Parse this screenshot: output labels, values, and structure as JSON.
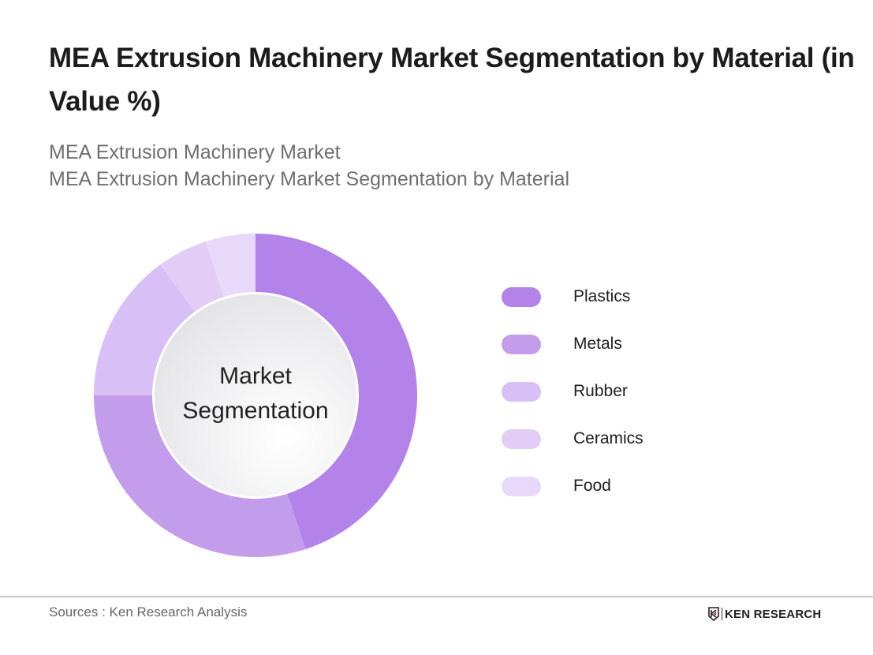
{
  "header": {
    "title": "MEA Extrusion Machinery Market Segmentation by Material (in Value %)",
    "subtitle_line1": "MEA Extrusion Machinery Market",
    "subtitle_line2": "MEA Extrusion Machinery Market Segmentation by Material"
  },
  "chart": {
    "center_line1": "Market",
    "center_line2": "Segmentation"
  },
  "legend": [
    {
      "label": "Plastics",
      "color": "#b383e9"
    },
    {
      "label": "Metals",
      "color": "#c49cec"
    },
    {
      "label": "Rubber",
      "color": "#d8bff5"
    },
    {
      "label": "Ceramics",
      "color": "#e2cdf7"
    },
    {
      "label": "Food",
      "color": "#e8d9fa"
    }
  ],
  "footer": {
    "source": "Sources : Ken Research Analysis",
    "brand": "KEN RESEARCH"
  },
  "chart_data": {
    "type": "pie",
    "variant": "donut",
    "title": "MEA Extrusion Machinery Market Segmentation by Material (in Value %)",
    "subtitle": "MEA Extrusion Machinery Market / MEA Extrusion Machinery Market Segmentation by Material",
    "center_text": "Market Segmentation",
    "categories": [
      "Plastics",
      "Metals",
      "Rubber",
      "Ceramics",
      "Food"
    ],
    "values": [
      45,
      30,
      15,
      5,
      5
    ],
    "colors": [
      "#b383e9",
      "#c49cec",
      "#d8bff5",
      "#e2cdf7",
      "#e8d9fa"
    ],
    "start_angle_deg": 0,
    "direction": "clockwise",
    "legend_position": "right",
    "data_labels": false
  }
}
